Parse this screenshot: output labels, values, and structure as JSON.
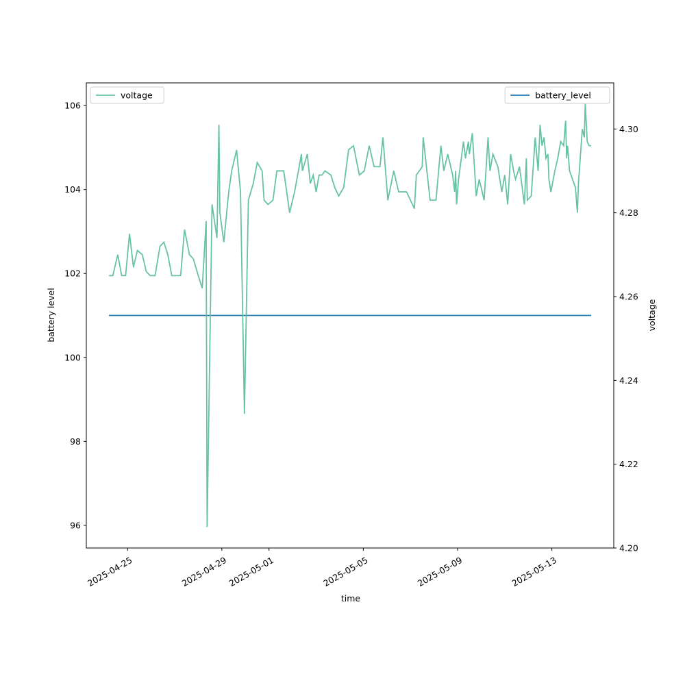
{
  "chart_data": {
    "type": "line",
    "x_label": "time",
    "y_label": "battery level",
    "y2_label": "voltage",
    "xlim": [
      "2025-04-23T06:00",
      "2025-05-15T15:00"
    ],
    "xticks": [
      "2025-04-25",
      "2025-04-29",
      "2025-05-01",
      "2025-05-05",
      "2025-05-09",
      "2025-05-13"
    ],
    "ylim": [
      95.46,
      106.54
    ],
    "yticks": [
      96,
      98,
      100,
      102,
      104,
      106
    ],
    "y2lim": [
      4.2,
      4.311
    ],
    "y2ticks": [
      {
        "value": 4.2,
        "label": "4.20"
      },
      4.22,
      4.24,
      4.26,
      4.28,
      {
        "value": 4.3,
        "label": "4.30"
      }
    ],
    "legend": {
      "y": "upper right",
      "y2": "upper left"
    },
    "series": [
      {
        "name": "battery_level",
        "color": "#1f77b4",
        "x": [
          "2025-04-24T05:00",
          "2025-05-14T16:00"
        ],
        "values": [
          101,
          101
        ]
      },
      {
        "name": "voltage",
        "color": "#66c2a5",
        "axis": "y2",
        "x": [
          "2025-04-24T05:00",
          "2025-04-24T09:00",
          "2025-04-24T14:00",
          "2025-04-24T18:00",
          "2025-04-24T22:00",
          "2025-04-25T02:00",
          "2025-04-25T06:00",
          "2025-04-25T10:00",
          "2025-04-25T15:00",
          "2025-04-25T19:00",
          "2025-04-25T23:00",
          "2025-04-26T04:00",
          "2025-04-26T09:00",
          "2025-04-26T13:00",
          "2025-04-26T17:00",
          "2025-04-26T21:00",
          "2025-04-27T06:00",
          "2025-04-27T10:00",
          "2025-04-27T15:00",
          "2025-04-27T19:00",
          "2025-04-28T00:00",
          "2025-04-28T04:00",
          "2025-04-28T08:00",
          "2025-04-28T09:00",
          "2025-04-28T14:00",
          "2025-04-28T19:00",
          "2025-04-28T21:00",
          "2025-04-28T22:00",
          "2025-04-29T02:00",
          "2025-04-29T07:00",
          "2025-04-29T10:00",
          "2025-04-29T15:00",
          "2025-04-29T19:00",
          "2025-04-29T23:00",
          "2025-04-30T03:00",
          "2025-04-30T08:00",
          "2025-04-30T12:00",
          "2025-04-30T17:00",
          "2025-04-30T19:00",
          "2025-04-30T23:00",
          "2025-05-01T04:00",
          "2025-05-01T08:00",
          "2025-05-01T15:00",
          "2025-05-01T21:00",
          "2025-05-02T02:00",
          "2025-05-02T06:00",
          "2025-05-02T09:00",
          "2025-05-02T10:00",
          "2025-05-02T15:00",
          "2025-05-02T18:00",
          "2025-05-02T21:00",
          "2025-05-03T00:00",
          "2025-05-03T03:00",
          "2025-05-03T06:00",
          "2025-05-03T09:00",
          "2025-05-03T15:00",
          "2025-05-03T19:00",
          "2025-05-03T23:00",
          "2025-05-04T04:00",
          "2025-05-04T09:00",
          "2025-05-04T14:00",
          "2025-05-04T20:00",
          "2025-05-05T01:00",
          "2025-05-05T06:00",
          "2025-05-05T11:00",
          "2025-05-05T17:00",
          "2025-05-05T20:00",
          "2025-05-06T01:00",
          "2025-05-06T07:00",
          "2025-05-06T12:00",
          "2025-05-06T20:00",
          "2025-05-07T04:00",
          "2025-05-07T06:00",
          "2025-05-07T12:00",
          "2025-05-07T13:00",
          "2025-05-07T20:00",
          "2025-05-08T02:00",
          "2025-05-08T07:00",
          "2025-05-08T10:00",
          "2025-05-08T14:00",
          "2025-05-08T19:00",
          "2025-05-08T21:00",
          "2025-05-08T22:00",
          "2025-05-08T23:00",
          "2025-05-09T01:00",
          "2025-05-09T06:00",
          "2025-05-09T08:00",
          "2025-05-09T11:00",
          "2025-05-09T12:00",
          "2025-05-09T15:00",
          "2025-05-09T19:00",
          "2025-05-09T22:00",
          "2025-05-10T03:00",
          "2025-05-10T07:00",
          "2025-05-10T09:00",
          "2025-05-10T12:00",
          "2025-05-10T17:00",
          "2025-05-10T21:00",
          "2025-05-11T00:00",
          "2025-05-11T03:00",
          "2025-05-11T06:00",
          "2025-05-11T09:00",
          "2025-05-11T11:00",
          "2025-05-11T15:00",
          "2025-05-11T20:00",
          "2025-05-11T22:00",
          "2025-05-11T23:00",
          "2025-05-12T03:00",
          "2025-05-12T07:00",
          "2025-05-12T10:00",
          "2025-05-12T12:00",
          "2025-05-12T14:00",
          "2025-05-12T16:00",
          "2025-05-12T18:00",
          "2025-05-12T20:00",
          "2025-05-12T21:00",
          "2025-05-12T23:00",
          "2025-05-13T03:00",
          "2025-05-13T06:00",
          "2025-05-13T09:00",
          "2025-05-13T12:00",
          "2025-05-13T14:00",
          "2025-05-13T15:00",
          "2025-05-13T16:00",
          "2025-05-13T18:00",
          "2025-05-14T00:00",
          "2025-05-14T02:00",
          "2025-05-14T03:00",
          "2025-05-14T07:00",
          "2025-05-14T09:00",
          "2025-05-14T10:00",
          "2025-05-14T12:00",
          "2025-05-14T14:00",
          "2025-05-14T16:00"
        ],
        "values": [
          4.265,
          4.265,
          4.27,
          4.265,
          4.265,
          4.275,
          4.267,
          4.271,
          4.27,
          4.266,
          4.265,
          4.265,
          4.272,
          4.273,
          4.27,
          4.265,
          4.265,
          4.276,
          4.27,
          4.269,
          4.265,
          4.262,
          4.278,
          4.205,
          4.282,
          4.274,
          4.301,
          4.28,
          4.273,
          4.285,
          4.29,
          4.295,
          4.285,
          4.232,
          4.283,
          4.287,
          4.292,
          4.29,
          4.283,
          4.282,
          4.283,
          4.29,
          4.29,
          4.28,
          4.285,
          4.29,
          4.294,
          4.29,
          4.294,
          4.287,
          4.289,
          4.285,
          4.289,
          4.289,
          4.29,
          4.289,
          4.286,
          4.284,
          4.286,
          4.295,
          4.296,
          4.289,
          4.29,
          4.296,
          4.291,
          4.291,
          4.298,
          4.283,
          4.29,
          4.285,
          4.285,
          4.281,
          4.289,
          4.291,
          4.298,
          4.283,
          4.283,
          4.296,
          4.29,
          4.294,
          4.289,
          4.285,
          4.29,
          4.282,
          4.288,
          4.297,
          4.293,
          4.297,
          4.294,
          4.299,
          4.284,
          4.288,
          4.283,
          4.298,
          4.29,
          4.294,
          4.291,
          4.285,
          4.289,
          4.282,
          4.294,
          4.29,
          4.288,
          4.291,
          4.282,
          4.293,
          4.283,
          4.284,
          4.298,
          4.29,
          4.301,
          4.296,
          4.298,
          4.293,
          4.294,
          4.288,
          4.285,
          4.29,
          4.293,
          4.297,
          4.296,
          4.302,
          4.293,
          4.296,
          4.29,
          4.286,
          4.28,
          4.287,
          4.3,
          4.298,
          4.306,
          4.297,
          4.296,
          4.296
        ]
      }
    ]
  }
}
